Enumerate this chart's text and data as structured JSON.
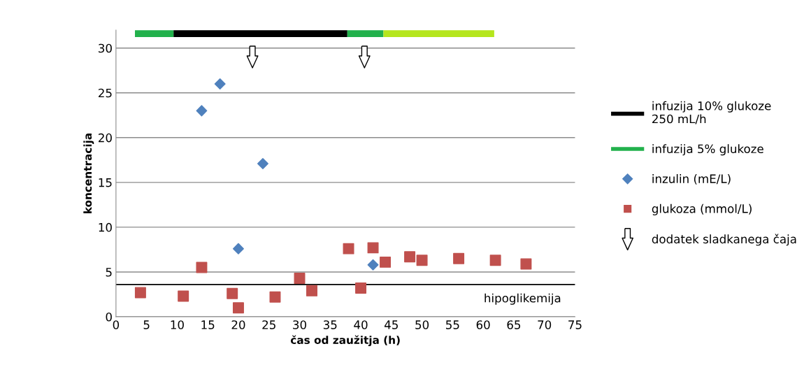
{
  "chart_data": {
    "type": "scatter",
    "xlabel": "čas od zaužitja (h)",
    "ylabel": "koncentracija",
    "series": [
      {
        "name": "infuzija 10% glukoze\n250 mL/h",
        "type": "line",
        "color": "#000000",
        "x": [
          9.4,
          37.8
        ],
        "values": [
          31.6,
          31.6
        ]
      },
      {
        "name": "infuzija 5% glukoze",
        "type": "line",
        "color": "#22b14c",
        "x": [
          3.1,
          9.4,
          20,
          37.8,
          43.7
        ],
        "values": [
          31.6,
          31.6,
          null,
          31.6,
          31.6
        ]
      },
      {
        "type": "line",
        "color": "#b5e61d",
        "x": [
          43.7,
          61.8
        ],
        "values": [
          31.6,
          31.6
        ]
      },
      {
        "name": "inzulin (mE/L)",
        "color": "#4f81bd",
        "marker": "diamond",
        "x": [
          14,
          17,
          20,
          24,
          40,
          42
        ],
        "values": [
          23,
          26,
          7.6,
          17.1,
          null,
          5.8
        ]
      },
      {
        "name": "glukoza (mmol/L)",
        "color": "#c0504d",
        "marker": "square",
        "x": [
          4,
          11,
          14,
          19,
          20,
          26,
          30,
          32,
          38,
          40,
          42,
          44,
          48,
          50,
          56,
          62,
          67
        ],
        "values": [
          2.7,
          2.3,
          5.5,
          2.6,
          1.0,
          2.2,
          4.3,
          2.9,
          7.6,
          3.2,
          7.7,
          6.1,
          6.7,
          6.3,
          6.5,
          6.3,
          5.9
        ]
      },
      {
        "name": "dodatek sladkanega čaja",
        "color": "#000000",
        "marker": "triangle",
        "x": [
          22.3,
          40.6
        ],
        "values": [
          29,
          29
        ]
      }
    ],
    "xlim": [
      0,
      75
    ],
    "xticks": [
      0,
      5,
      10,
      15,
      20,
      25,
      30,
      35,
      40,
      45,
      50,
      55,
      60,
      65,
      70,
      75
    ],
    "ylim": [
      0,
      32
    ],
    "yticks": [
      0,
      5,
      10,
      15,
      20,
      25,
      30
    ],
    "grid": "y",
    "legend": "right",
    "ref_lines": [
      {
        "axis": "y",
        "value": 3.6,
        "label": "hipoglikemija",
        "color": "#000000"
      }
    ]
  }
}
